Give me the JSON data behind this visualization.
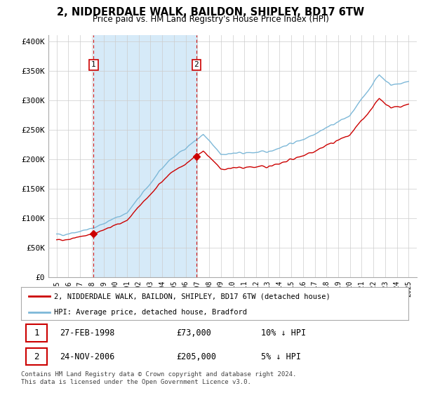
{
  "title": "2, NIDDERDALE WALK, BAILDON, SHIPLEY, BD17 6TW",
  "subtitle": "Price paid vs. HM Land Registry's House Price Index (HPI)",
  "ylabel_ticks": [
    "£0",
    "£50K",
    "£100K",
    "£150K",
    "£200K",
    "£250K",
    "£300K",
    "£350K",
    "£400K"
  ],
  "ytick_vals": [
    0,
    50000,
    100000,
    150000,
    200000,
    250000,
    300000,
    350000,
    400000
  ],
  "ylim": [
    0,
    410000
  ],
  "sale1_date": "27-FEB-1998",
  "sale1_price": 73000,
  "sale1_price_str": "£73,000",
  "sale1_hpi": "10% ↓ HPI",
  "sale1_label": "1",
  "sale1_year": 1998.15,
  "sale2_date": "24-NOV-2006",
  "sale2_price": 205000,
  "sale2_price_str": "£205,000",
  "sale2_hpi": "5% ↓ HPI",
  "sale2_label": "2",
  "sale2_year": 2006.9,
  "hpi_line_color": "#7db8d8",
  "price_line_color": "#cc0000",
  "dashed_line_color": "#cc0000",
  "marker_color": "#cc0000",
  "shade_color": "#d6eaf8",
  "legend_label1": "2, NIDDERDALE WALK, BAILDON, SHIPLEY, BD17 6TW (detached house)",
  "legend_label2": "HPI: Average price, detached house, Bradford",
  "footer": "Contains HM Land Registry data © Crown copyright and database right 2024.\nThis data is licensed under the Open Government Licence v3.0.",
  "background_color": "#ffffff",
  "plot_background": "#ffffff",
  "grid_color": "#cccccc"
}
